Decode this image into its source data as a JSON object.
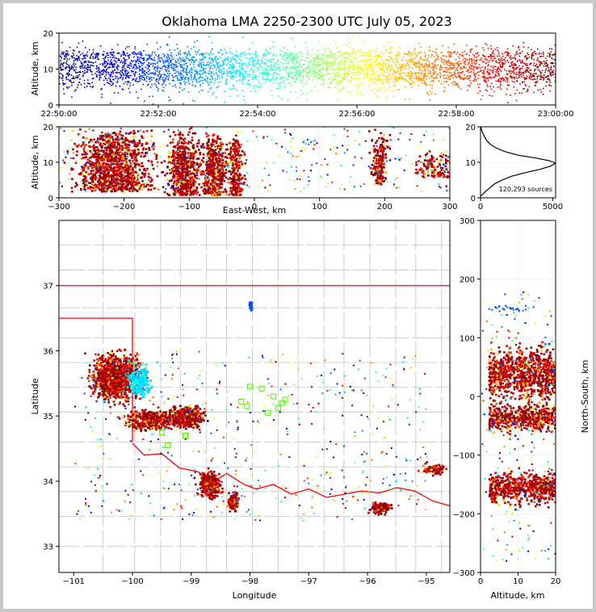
{
  "chart_data": {
    "type": "scatter",
    "title": "Oklahoma LMA 2250-2300 UTC July 05, 2023",
    "colors": {
      "colormap": [
        "#00007f",
        "#0000ff",
        "#007fff",
        "#00ffff",
        "#7fff7f",
        "#ffff00",
        "#ff7f00",
        "#ff0000",
        "#7f0000"
      ],
      "border": "#ff0000",
      "county": "#c8c8c8",
      "station": "#55ee00",
      "histogram": "#000000"
    },
    "time_panel": {
      "ylabel": "Altitude, km",
      "xticks": [
        "22:50:00",
        "22:52:00",
        "22:54:00",
        "22:56:00",
        "22:58:00",
        "23:00:00"
      ],
      "yticks": [
        "0",
        "10",
        "20"
      ],
      "ylim": [
        0,
        20
      ]
    },
    "ew_panel": {
      "xlabel": "East-West, km",
      "ylabel": "Altitude, km",
      "xlim": [
        -300,
        300
      ],
      "ylim": [
        0,
        20
      ],
      "xticks": [
        "−300",
        "−200",
        "−100",
        "0",
        "100",
        "200",
        "300"
      ],
      "yticks": [
        "0",
        "10",
        "20"
      ]
    },
    "histogram_panel": {
      "annotation": "120,293 sources",
      "xticks": [
        "0",
        "5000"
      ],
      "yticks": [
        "0",
        "10",
        "20"
      ],
      "xlim": [
        0,
        5200
      ],
      "ylim": [
        0,
        20
      ],
      "profile": [
        [
          0.5,
          0
        ],
        [
          1,
          150
        ],
        [
          2,
          400
        ],
        [
          3,
          700
        ],
        [
          4,
          1000
        ],
        [
          5,
          1500
        ],
        [
          6,
          2100
        ],
        [
          7,
          3000
        ],
        [
          8,
          4100
        ],
        [
          9,
          4900
        ],
        [
          9.8,
          5200
        ],
        [
          10.5,
          4700
        ],
        [
          11.2,
          3800
        ],
        [
          12,
          2600
        ],
        [
          13,
          1700
        ],
        [
          14,
          1100
        ],
        [
          15,
          700
        ],
        [
          16,
          450
        ],
        [
          17,
          300
        ],
        [
          18,
          180
        ],
        [
          19,
          80
        ],
        [
          20,
          20
        ]
      ]
    },
    "plan_panel": {
      "xlabel": "Longitude",
      "ylabel": "Latitude",
      "xlim": [
        -101.25,
        -94.6
      ],
      "ylim": [
        32.6,
        38.0
      ],
      "xticks": [
        "−101",
        "−100",
        "−99",
        "−98",
        "−97",
        "−96",
        "−95"
      ],
      "yticks": [
        "33",
        "34",
        "35",
        "36",
        "37"
      ]
    },
    "ns_panel": {
      "xlabel": "Altitude, km",
      "ylabel": "North-South, km",
      "xlim": [
        0,
        20
      ],
      "ylim": [
        -300,
        300
      ],
      "xticks": [
        "0",
        "10",
        "20"
      ],
      "yticks": [
        "300",
        "200",
        "100",
        "0",
        "−100",
        "−200",
        "−300"
      ]
    },
    "stations": [
      [
        -98.0,
        35.45
      ],
      [
        -97.8,
        35.42
      ],
      [
        -97.6,
        35.3
      ],
      [
        -97.45,
        35.2
      ],
      [
        -97.52,
        35.12
      ],
      [
        -97.4,
        35.25
      ],
      [
        -98.05,
        35.15
      ],
      [
        -99.4,
        34.55
      ],
      [
        -99.1,
        34.7
      ],
      [
        -99.5,
        34.75
      ],
      [
        -98.15,
        35.22
      ],
      [
        -97.7,
        35.05
      ]
    ]
  }
}
